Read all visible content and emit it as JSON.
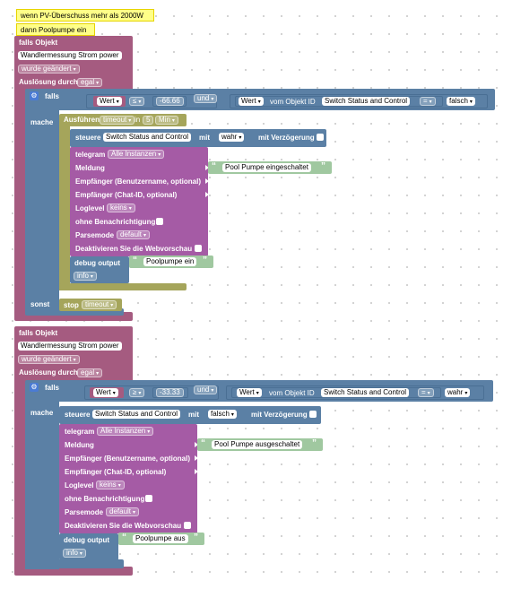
{
  "notes": {
    "condition": "wenn PV-Überschuss mehr als 2000W",
    "action_on": "dann Poolpumpe ein"
  },
  "block1": {
    "header": "falls Objekt",
    "object": "Wandlermessung Strom  power",
    "change": "wurde geändert",
    "trigger_label": "Auslösung durch",
    "trigger_value": "egal",
    "if_label": "falls",
    "do_label": "mache",
    "else_label": "sonst",
    "cond_left_dd": "Wert",
    "cond_op": "≤",
    "cond_value": "-66.66",
    "and": "und",
    "cond2_dd": "Wert",
    "cond2_from": "vom Objekt ID",
    "cond2_obj": "Switch Status and Control",
    "cond2_op": "=",
    "cond2_val": "falsch",
    "exec_label": "Ausführen",
    "exec_timeout_dd": "timeout",
    "exec_in": "in",
    "exec_num": "5",
    "exec_unit": "Min",
    "control_label": "steuere",
    "control_obj": "Switch Status and Control",
    "control_with": "mit",
    "control_val": "wahr",
    "control_delay": "mit Verzögerung",
    "telegram_label": "telegram",
    "telegram_inst": "Alle Instanzen",
    "message_label": "Meldung",
    "message_text": "Pool Pumpe eingeschaltet",
    "recipient_label": "Empfänger (Benutzername, optional)",
    "chat_label": "Empfänger (Chat-ID, optional)",
    "loglevel_label": "Loglevel",
    "loglevel_val": "keins",
    "silent_label": "ohne Benachrichtigung",
    "parse_label": "Parsemode",
    "parse_val": "default",
    "preview_label": "Deaktivieren Sie die Webvorschau",
    "debug_label": "debug output",
    "debug_text": "Poolpumpe ein",
    "debug_level": "info",
    "stop_label": "stop",
    "stop_dd": "timeout"
  },
  "block2": {
    "header": "falls Objekt",
    "object": "Wandlermessung Strom  power",
    "change": "wurde geändert",
    "trigger_label": "Auslösung durch",
    "trigger_value": "egal",
    "if_label": "falls",
    "do_label": "mache",
    "cond_left_dd": "Wert",
    "cond_op": "≥",
    "cond_value": "-33.33",
    "and": "und",
    "cond2_dd": "Wert",
    "cond2_from": "vom Objekt ID",
    "cond2_obj": "Switch Status and Control",
    "cond2_op": "=",
    "cond2_val": "wahr",
    "control_label": "steuere",
    "control_obj": "Switch Status and Control",
    "control_with": "mit",
    "control_val": "falsch",
    "control_delay": "mit Verzögerung",
    "telegram_label": "telegram",
    "telegram_inst": "Alle Instanzen",
    "message_label": "Meldung",
    "message_text": "Pool Pumpe ausgeschaltet",
    "recipient_label": "Empfänger (Benutzername, optional)",
    "chat_label": "Empfänger (Chat-ID, optional)",
    "loglevel_label": "Loglevel",
    "loglevel_val": "keins",
    "silent_label": "ohne Benachrichtigung",
    "parse_label": "Parsemode",
    "parse_val": "default",
    "preview_label": "Deaktivieren Sie die Webvorschau",
    "debug_label": "debug output",
    "debug_text": "Poolpumpe aus",
    "debug_level": "info"
  },
  "icons": {
    "dropdown_arrow": "▾",
    "quote_open": "“",
    "quote_close": "”",
    "gear": "⚙"
  }
}
